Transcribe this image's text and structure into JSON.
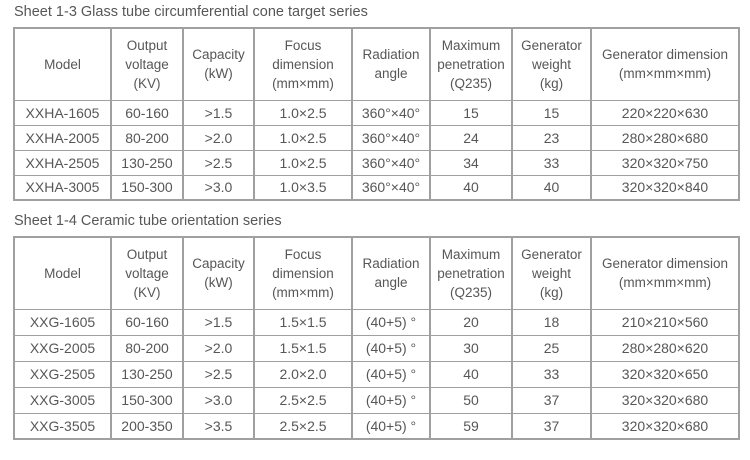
{
  "theme": {
    "text_color": "#575757",
    "border_color": "#a0a0a0",
    "background": "#ffffff"
  },
  "tables": [
    {
      "title": "Sheet 1-3 Glass tube circumferential cone target series",
      "headers": [
        [
          "Model"
        ],
        [
          "Output",
          "voltage",
          "(KV)"
        ],
        [
          "Capacity",
          "(kW)"
        ],
        [
          "Focus",
          "dimension",
          "(mm×mm)"
        ],
        [
          "Radiation",
          "angle"
        ],
        [
          "Maximum",
          "penetration",
          "(Q235)"
        ],
        [
          "Generator",
          "weight",
          "(kg)"
        ],
        [
          "Generator dimension",
          "(mm×mm×mm)"
        ]
      ],
      "rows": [
        [
          "XXHA-1605",
          "60-160",
          ">1.5",
          "1.0×2.5",
          "360°×40°",
          "15",
          "15",
          "220×220×630"
        ],
        [
          "XXHA-2005",
          "80-200",
          ">2.0",
          "1.0×2.5",
          "360°×40°",
          "24",
          "23",
          "280×280×680"
        ],
        [
          "XXHA-2505",
          "130-250",
          ">2.5",
          "1.0×2.5",
          "360°×40°",
          "34",
          "33",
          "320×320×750"
        ],
        [
          "XXHA-3005",
          "150-300",
          ">3.0",
          "1.0×3.5",
          "360°×40°",
          "40",
          "40",
          "320×320×840"
        ]
      ]
    },
    {
      "title": "Sheet 1-4 Ceramic tube orientation series",
      "headers": [
        [
          "Model"
        ],
        [
          "Output",
          "voltage",
          "(KV)"
        ],
        [
          "Capacity",
          "(kW)"
        ],
        [
          "Focus",
          "dimension",
          "(mm×mm)"
        ],
        [
          "Radiation",
          "angle"
        ],
        [
          "Maximum",
          "penetration",
          "(Q235)"
        ],
        [
          "Generator",
          "weight",
          "(kg)"
        ],
        [
          "Generator dimension",
          "(mm×mm×mm)"
        ]
      ],
      "rows": [
        [
          "XXG-1605",
          "60-160",
          ">1.5",
          "1.5×1.5",
          "(40+5) °",
          "20",
          "18",
          "210×210×560"
        ],
        [
          "XXG-2005",
          "80-200",
          ">2.0",
          "1.5×1.5",
          "(40+5) °",
          "30",
          "25",
          "280×280×620"
        ],
        [
          "XXG-2505",
          "130-250",
          ">2.5",
          "2.0×2.0",
          "(40+5) °",
          "40",
          "33",
          "320×320×650"
        ],
        [
          "XXG-3005",
          "150-300",
          ">3.0",
          "2.5×2.5",
          "(40+5) °",
          "50",
          "37",
          "320×320×680"
        ],
        [
          "XXG-3505",
          "200-350",
          ">3.5",
          "2.5×2.5",
          "(40+5) °",
          "59",
          "37",
          "320×320×680"
        ]
      ]
    }
  ]
}
